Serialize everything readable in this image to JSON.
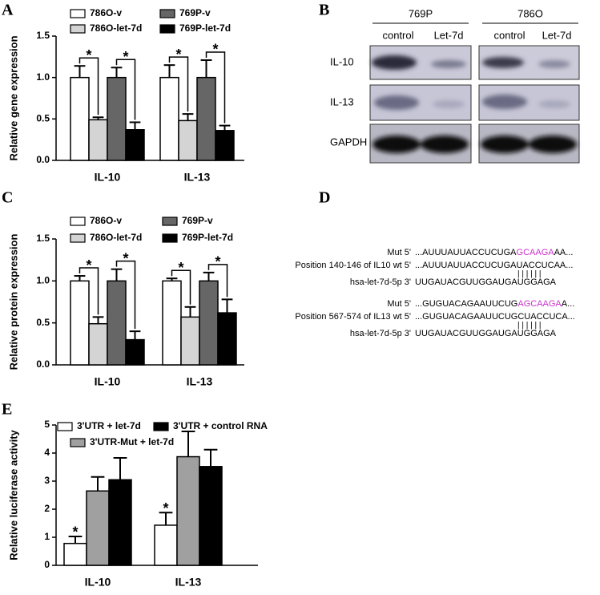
{
  "panel_labels": [
    "A",
    "B",
    "C",
    "D",
    "E"
  ],
  "chart_data": [
    {
      "type": "bar",
      "ylabel": "Relative gene expression",
      "categories": [
        "IL-10",
        "IL-13"
      ],
      "series": [
        {
          "name": "786O-v",
          "color": "#ffffff",
          "values": [
            1.0,
            1.0
          ],
          "errors": [
            0.14,
            0.15
          ]
        },
        {
          "name": "786O-let-7d",
          "color": "#d4d4d4",
          "values": [
            0.49,
            0.48
          ],
          "errors": [
            0.03,
            0.08
          ]
        },
        {
          "name": "769P-v",
          "color": "#666666",
          "values": [
            1.0,
            1.0
          ],
          "errors": [
            0.12,
            0.21
          ]
        },
        {
          "name": "769P-let-7d",
          "color": "#000000",
          "values": [
            0.37,
            0.36
          ],
          "errors": [
            0.09,
            0.06
          ]
        }
      ],
      "ylim": [
        0,
        1.5
      ],
      "yticks": [
        {
          "value": 0,
          "label": "0.0"
        },
        0.5,
        {
          "value": 1,
          "label": "1.0"
        },
        1.5
      ],
      "significance": "*"
    },
    {
      "type": "bar",
      "ylabel": "Relative protein expression",
      "categories": [
        "IL-10",
        "IL-13"
      ],
      "series": [
        {
          "name": "786O-v",
          "color": "#ffffff",
          "values": [
            1.0,
            1.0
          ],
          "errors": [
            0.06,
            0.03
          ]
        },
        {
          "name": "786O-let-7d",
          "color": "#d4d4d4",
          "values": [
            0.49,
            0.57
          ],
          "errors": [
            0.08,
            0.12
          ]
        },
        {
          "name": "769P-v",
          "color": "#666666",
          "values": [
            1.0,
            1.0
          ],
          "errors": [
            0.14,
            0.1
          ]
        },
        {
          "name": "769P-let-7d",
          "color": "#000000",
          "values": [
            0.3,
            0.62
          ],
          "errors": [
            0.1,
            0.16
          ]
        }
      ],
      "ylim": [
        0,
        1.5
      ],
      "yticks": [
        {
          "value": 0,
          "label": "0.0"
        },
        0.5,
        {
          "value": 1,
          "label": "1.0"
        },
        1.5
      ],
      "significance": "*"
    },
    {
      "type": "bar",
      "ylabel": "Relative luciferase activity",
      "categories": [
        "IL-10",
        "IL-13"
      ],
      "series": [
        {
          "name": "3'UTR + let-7d",
          "color": "#ffffff",
          "values": [
            0.78,
            1.43
          ],
          "errors": [
            0.25,
            0.45
          ]
        },
        {
          "name": "3'UTR-Mut + let-7d",
          "color": "#a0a0a0",
          "values": [
            2.65,
            3.87
          ],
          "errors": [
            0.5,
            0.9
          ]
        },
        {
          "name": "3'UTR + control RNA",
          "color": "#000000",
          "values": [
            3.05,
            3.52
          ],
          "errors": [
            0.78,
            0.6
          ]
        }
      ],
      "ylim": [
        0,
        5
      ],
      "yticks": [
        0,
        1,
        2,
        3,
        4,
        5
      ],
      "significance": "*"
    }
  ],
  "blot": {
    "cell_lines": [
      "769P",
      "786O"
    ],
    "conditions": [
      "control",
      "Let-7d",
      "control",
      "Let-7d"
    ],
    "rows": [
      "IL-10",
      "IL-13",
      "GAPDH"
    ]
  },
  "sequences": [
    {
      "lines": [
        {
          "label": "Mut  5'",
          "seq": [
            "...AUUUAUUACCUCUGA",
            "GCAAGA",
            "AA..."
          ]
        },
        {
          "label": "Position 140-146 of IL10 wt  5'",
          "seq": [
            "...AUUUAUUACCUCUGAUACCUCAA..."
          ]
        },
        {
          "label": "hsa-let-7d-5p  3'",
          "seq": [
            "UUGAUACGUUGGAUGAUGGAGA"
          ]
        }
      ]
    },
    {
      "lines": [
        {
          "label": "Mut  5'",
          "seq": [
            "...GUGUACAGAAUUCUG",
            "AGCAAGA",
            "A..."
          ]
        },
        {
          "label": "Position 567-574 of IL13  wt  5'",
          "seq": [
            "...GUGUACAGAAUUCUGCUACCUCA..."
          ]
        },
        {
          "label": "hsa-let-7d-5p  3'",
          "seq": [
            "UUGAUACGUUGGAUGAUGGAGA"
          ]
        }
      ]
    }
  ]
}
